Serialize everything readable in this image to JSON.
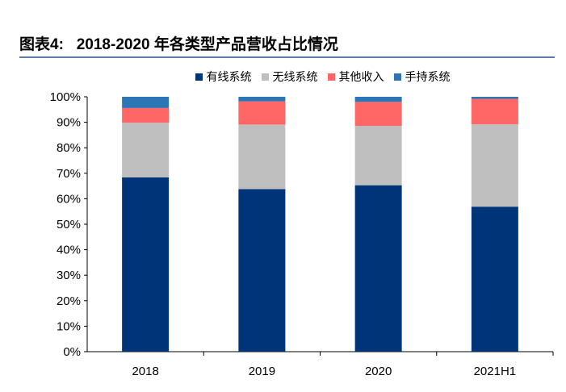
{
  "title": "图表4:   2018-2020 年各类型产品营收占比情况",
  "chart_data": {
    "type": "bar",
    "stacked": true,
    "categories": [
      "2018",
      "2019",
      "2020",
      "2021H1"
    ],
    "series": [
      {
        "name": "有线系统",
        "color": "#003478",
        "values": [
          68.4,
          63.8,
          65.3,
          56.9
        ]
      },
      {
        "name": "无线系统",
        "color": "#bfbfbf",
        "values": [
          21.4,
          25.3,
          23.3,
          32.3
        ]
      },
      {
        "name": "其他收入",
        "color": "#ff6666",
        "values": [
          5.8,
          9.1,
          9.4,
          10.0
        ]
      },
      {
        "name": "手持系统",
        "color": "#2e75b6",
        "values": [
          4.4,
          1.8,
          2.0,
          0.8
        ]
      }
    ],
    "ylim": [
      0,
      100
    ],
    "yticks": [
      "0%",
      "10%",
      "20%",
      "30%",
      "40%",
      "50%",
      "60%",
      "70%",
      "80%",
      "90%",
      "100%"
    ],
    "legend": "top",
    "grid": false
  }
}
